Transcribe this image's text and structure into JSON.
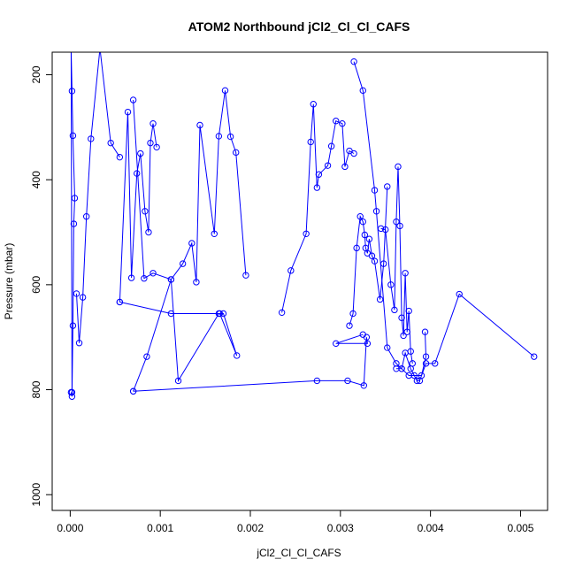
{
  "chart_data": {
    "type": "line",
    "title": "ATOM2 Northbound jCl2_Cl_Cl_CAFS",
    "xlabel": "jCl2_Cl_Cl_CAFS",
    "ylabel": "Pressure (mbar)",
    "xlim": [
      -0.0002,
      0.0053
    ],
    "ylim": [
      1030,
      157
    ],
    "y_reversed": true,
    "grid": false,
    "legend": "none",
    "line_color": "#0000ff",
    "x_ticks": [
      0,
      0.001,
      0.002,
      0.003,
      0.004,
      0.005
    ],
    "x_tick_labels": [
      "0.000",
      "0.001",
      "0.002",
      "0.003",
      "0.004",
      "0.005"
    ],
    "y_ticks": [
      200,
      400,
      600,
      800,
      1000
    ],
    "y_tick_labels": [
      "200",
      "400",
      "600",
      "800",
      "1000"
    ],
    "series": [
      {
        "x": [
          1e-05,
          2e-05,
          3e-05,
          4e-05,
          5e-05,
          3e-05,
          2e-05,
          1e-05,
          1e-05,
          1e-05,
          2e-05
        ],
        "y": [
          805,
          813,
          678,
          484,
          435,
          316,
          231,
          150,
          150,
          150,
          805
        ]
      },
      {
        "x": [
          7e-05,
          0.0001,
          0.00014,
          0.00018,
          0.00023,
          0.00033,
          0.00045,
          0.00055
        ],
        "y": [
          617,
          711,
          624,
          470,
          322,
          150,
          330,
          357
        ]
      },
      {
        "x": [
          0.00055,
          0.00064,
          0.00068,
          0.00074,
          0.00078,
          0.00083,
          0.00087,
          0.00089,
          0.00092,
          0.00096
        ],
        "y": [
          633,
          271,
          587,
          388,
          350,
          460,
          500,
          330,
          293,
          338
        ]
      },
      {
        "x": [
          0.0007,
          0.00082,
          0.00092,
          0.00112,
          0.00125,
          0.00135,
          0.0014,
          0.00144,
          0.0016,
          0.00165,
          0.00172,
          0.00178,
          0.00184,
          0.00195
        ],
        "y": [
          248,
          588,
          578,
          590,
          560,
          521,
          595,
          296,
          503,
          317,
          230,
          318,
          348,
          582
        ]
      },
      {
        "x": [
          0.00055,
          0.00112,
          0.0017,
          0.00185,
          0.00166,
          0.00165,
          0.0012,
          0.00112,
          0.00085,
          0.0007
        ],
        "y": [
          633,
          655,
          655,
          735,
          655,
          655,
          783,
          590,
          737,
          803
        ]
      },
      {
        "x": [
          0.0007,
          0.00274,
          0.00308,
          0.00326,
          0.00329,
          0.0033,
          0.00295,
          0.00325
        ],
        "y": [
          803,
          783,
          783,
          792,
          700,
          712,
          712,
          695
        ]
      },
      {
        "x": [
          0.00235,
          0.00245,
          0.00262,
          0.00267,
          0.0027,
          0.00274,
          0.00276,
          0.00286,
          0.0029,
          0.00295,
          0.00302,
          0.00305,
          0.0031,
          0.00315
        ],
        "y": [
          653,
          573,
          503,
          328,
          256,
          415,
          390,
          373,
          336,
          288,
          293,
          375,
          345,
          350
        ]
      },
      {
        "x": [
          0.0031,
          0.00314,
          0.00318,
          0.00322,
          0.00325,
          0.00327,
          0.00328,
          0.0033,
          0.00332,
          0.00335,
          0.00338,
          0.00344,
          0.00348,
          0.00352
        ],
        "y": [
          678,
          655,
          530,
          470,
          480,
          505,
          530,
          540,
          513,
          545,
          555,
          628,
          560,
          413
        ]
      },
      {
        "x": [
          0.00345,
          0.0035,
          0.00356,
          0.0036,
          0.00362,
          0.00364,
          0.00366,
          0.00368,
          0.0037,
          0.00372,
          0.00374,
          0.00376,
          0.00378,
          0.0038
        ],
        "y": [
          493,
          495,
          600,
          648,
          480,
          375,
          488,
          663,
          697,
          578,
          690,
          650,
          727,
          750
        ]
      },
      {
        "x": [
          0.00362,
          0.00368,
          0.00372,
          0.00378,
          0.00382,
          0.00385,
          0.00388,
          0.00395,
          0.00405,
          0.00432,
          0.00515
        ],
        "y": [
          760,
          760,
          730,
          760,
          773,
          783,
          783,
          750,
          750,
          618,
          737
        ]
      },
      {
        "x": [
          0.00315,
          0.00325,
          0.00338,
          0.0034,
          0.00352,
          0.00362,
          0.00368,
          0.00376,
          0.0039,
          0.00395,
          0.00394
        ],
        "y": [
          175,
          230,
          420,
          460,
          720,
          750,
          760,
          773,
          773,
          737,
          690
        ]
      }
    ]
  }
}
